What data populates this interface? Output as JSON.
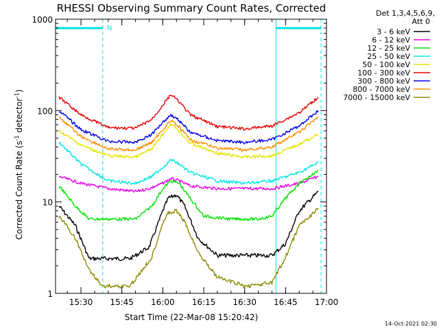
{
  "chart_data": {
    "type": "line",
    "title": "RHESSI Observing Summary Count Rates, Corrected",
    "ylabel_prefix": "Corrected Count Rate (s",
    "ylabel_sup1": "-1",
    "ylabel_mid": " detector",
    "ylabel_sup2": "-1",
    "ylabel_suffix": ")",
    "xlabel": "Start Time (22-Mar-08 15:20:42)",
    "y_scale": "log",
    "ylim": [
      1,
      1000
    ],
    "y_ticks": [
      {
        "value": 1,
        "label": "1"
      },
      {
        "value": 10,
        "label": "10"
      },
      {
        "value": 100,
        "label": "100"
      },
      {
        "value": 1000,
        "label": "1000"
      }
    ],
    "x_range": [
      "15:20:42",
      "17:00"
    ],
    "x_ticks": [
      "15:30",
      "15:45",
      "16:00",
      "16:15",
      "16:30",
      "16:45",
      "17:00"
    ],
    "detectors_line1": "Det 1,3,4,5,6,9,",
    "detectors_line2": "Att 0",
    "night_marker": "N",
    "night_intervals": [
      {
        "start": "15:20:42",
        "end": "15:38:00"
      },
      {
        "start": "16:41:30",
        "end": "16:58:00"
      }
    ],
    "series": [
      {
        "name": "3 - 6 keV",
        "color": "#000000",
        "x": [
          "15:22",
          "15:28",
          "15:33",
          "15:40",
          "15:48",
          "15:55",
          "16:00",
          "16:02",
          "16:05",
          "16:08",
          "16:13",
          "16:20",
          "16:30",
          "16:40",
          "16:45",
          "16:50",
          "16:57"
        ],
        "y": [
          9,
          5.5,
          2.4,
          2.4,
          2.4,
          3.2,
          8,
          11,
          12,
          9,
          4,
          2.6,
          2.6,
          2.6,
          3.5,
          8,
          13
        ]
      },
      {
        "name": "6 - 12 keV",
        "color": "#e400e4",
        "x": [
          "15:22",
          "15:30",
          "15:40",
          "15:50",
          "15:55",
          "16:00",
          "16:03",
          "16:06",
          "16:10",
          "16:20",
          "16:30",
          "16:40",
          "16:50",
          "16:57"
        ],
        "y": [
          19,
          16,
          14,
          13,
          14,
          16,
          18,
          17,
          15,
          14,
          14,
          14,
          16,
          19
        ]
      },
      {
        "name": "12 - 25 keV",
        "color": "#00e400",
        "x": [
          "15:22",
          "15:28",
          "15:33",
          "15:40",
          "15:50",
          "15:56",
          "16:00",
          "16:03",
          "16:06",
          "16:10",
          "16:15",
          "16:25",
          "16:35",
          "16:40",
          "16:45",
          "16:50",
          "16:57"
        ],
        "y": [
          15,
          9,
          6.5,
          6.5,
          6.5,
          9,
          14,
          17,
          16,
          11,
          7,
          6.5,
          6.5,
          7,
          11,
          16,
          22
        ]
      },
      {
        "name": "25 - 50 keV",
        "color": "#00e4e4",
        "x": [
          "15:22",
          "15:30",
          "15:40",
          "15:50",
          "15:56",
          "16:00",
          "16:03",
          "16:06",
          "16:10",
          "16:20",
          "16:30",
          "16:40",
          "16:50",
          "16:57"
        ],
        "y": [
          45,
          26,
          17,
          16,
          19,
          24,
          29,
          26,
          21,
          17,
          16,
          17,
          21,
          27
        ]
      },
      {
        "name": "50 - 100 keV",
        "color": "#e4e400",
        "x": [
          "15:22",
          "15:30",
          "15:40",
          "15:50",
          "15:56",
          "16:00",
          "16:03",
          "16:06",
          "16:10",
          "16:20",
          "16:30",
          "16:40",
          "16:50",
          "16:57"
        ],
        "y": [
          60,
          42,
          32,
          31,
          38,
          55,
          72,
          60,
          44,
          34,
          31,
          32,
          43,
          55
        ]
      },
      {
        "name": "100 - 300 keV",
        "color": "#e40000",
        "x": [
          "15:22",
          "15:30",
          "15:40",
          "15:50",
          "15:56",
          "16:00",
          "16:03",
          "16:06",
          "16:10",
          "16:20",
          "16:30",
          "16:40",
          "16:50",
          "16:57"
        ],
        "y": [
          140,
          90,
          65,
          64,
          80,
          115,
          150,
          125,
          90,
          67,
          63,
          68,
          95,
          140
        ]
      },
      {
        "name": "300 - 800 keV",
        "color": "#0000e4",
        "x": [
          "15:22",
          "15:30",
          "15:40",
          "15:50",
          "15:56",
          "16:00",
          "16:03",
          "16:06",
          "16:10",
          "16:20",
          "16:30",
          "16:40",
          "16:50",
          "16:57"
        ],
        "y": [
          100,
          62,
          46,
          45,
          55,
          75,
          90,
          78,
          58,
          47,
          45,
          48,
          68,
          100
        ]
      },
      {
        "name": "800 - 7000 keV",
        "color": "#ff8c00",
        "x": [
          "15:22",
          "15:30",
          "15:40",
          "15:50",
          "15:56",
          "16:00",
          "16:03",
          "16:06",
          "16:10",
          "16:20",
          "16:30",
          "16:40",
          "16:50",
          "16:57"
        ],
        "y": [
          85,
          52,
          38,
          37,
          45,
          62,
          78,
          66,
          48,
          39,
          37,
          40,
          58,
          85
        ]
      },
      {
        "name": "7000 - 15000 keV",
        "color": "#8b8b00",
        "x": [
          "15:22",
          "15:28",
          "15:33",
          "15:38",
          "15:48",
          "15:56",
          "16:00",
          "16:02",
          "16:05",
          "16:08",
          "16:13",
          "16:20",
          "16:30",
          "16:40",
          "16:45",
          "16:50",
          "16:57"
        ],
        "y": [
          7,
          4,
          1.8,
          1.2,
          1.2,
          2.5,
          6,
          7.5,
          8,
          6,
          2.8,
          1.5,
          1.2,
          1.3,
          2.5,
          5.5,
          8.5
        ]
      }
    ]
  },
  "timestamp": "14-Oct-2021 02:30",
  "colors": {
    "cyan_marker": "#00e4e4",
    "background": "#ffffff",
    "axis": "#000000"
  }
}
